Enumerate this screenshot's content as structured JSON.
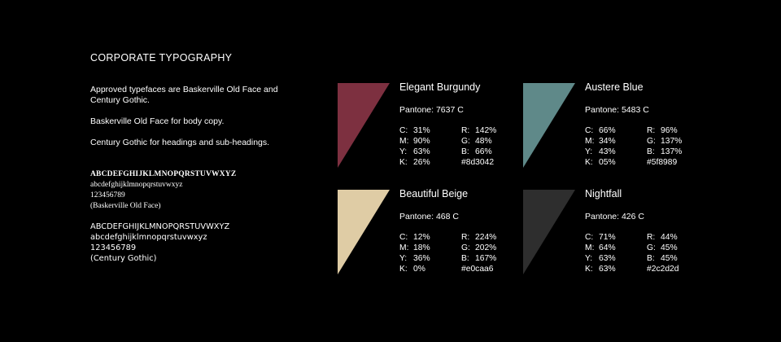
{
  "heading": "CORPORATE TYPOGRAPHY",
  "paragraphs": [
    "Approved typefaces are Baskerville Old Face and Century Gothic.",
    "Baskerville Old Face for body copy.",
    "Century Gothic for headings and sub-headings."
  ],
  "serif_sample": [
    "ABCDEFGHIJKLMNOPQRSTUVWXYZ",
    "abcdefghijklmnopqrstuvwxyz",
    "123456789",
    "(Baskerville Old Face)"
  ],
  "sans_sample": [
    "ABCDEFGHIJKLMNOPQRSTUVWXYZ",
    "abcdefghijklmnopqrstuvwxyz",
    "123456789",
    "(Century Gothic)"
  ],
  "swatches": [
    {
      "name": "Elegant Burgundy",
      "pantone": "Pantone: 7637 C",
      "color": "#7d3040",
      "c": "31%",
      "m": "90%",
      "y": "63%",
      "k": "26%",
      "r": "142%",
      "g": "48%",
      "b": "66%",
      "hex": "#8d3042"
    },
    {
      "name": "Austere Blue",
      "pantone": "Pantone: 5483 C",
      "color": "#5f8989",
      "c": "66%",
      "m": "34%",
      "y": "43%",
      "k": "05%",
      "r": "96%",
      "g": "137%",
      "b": "137%",
      "hex": "#5f8989"
    },
    {
      "name": "Beautiful Beige",
      "pantone": "Pantone: 468 C",
      "color": "#dfcca5",
      "c": "12%",
      "m": "18%",
      "y": "36%",
      "k": "0%",
      "r": "224%",
      "g": "202%",
      "b": "167%",
      "hex": "#e0caa6"
    },
    {
      "name": "Nightfall",
      "pantone": "Pantone: 426 C",
      "color": "#2e2e2e",
      "c": "71%",
      "m": "64%",
      "y": "63%",
      "k": "63%",
      "r": "44%",
      "g": "45%",
      "b": "45%",
      "hex": "#2c2d2d"
    }
  ],
  "labels": {
    "c": "C:",
    "m": "M:",
    "y": "Y:",
    "k": "K:",
    "r": "R:",
    "g": "G:",
    "b": "B:"
  }
}
